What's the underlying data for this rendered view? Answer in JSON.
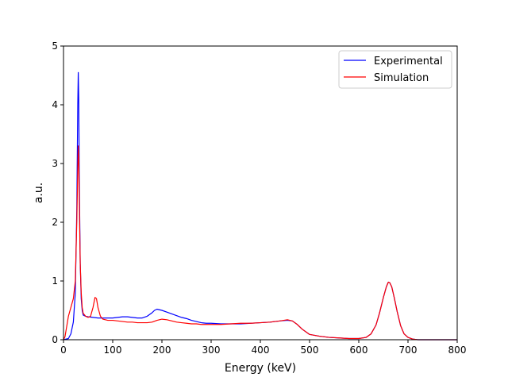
{
  "chart_data": {
    "type": "line",
    "title": "",
    "xlabel": "Energy (keV)",
    "ylabel": "a.u.",
    "xlim": [
      0,
      800
    ],
    "ylim": [
      0,
      5
    ],
    "xticks": [
      "0",
      "100",
      "200",
      "300",
      "400",
      "500",
      "600",
      "700",
      "800"
    ],
    "yticks": [
      "0",
      "1",
      "2",
      "3",
      "4",
      "5"
    ],
    "grid": false,
    "legend_position": "top-right",
    "series": [
      {
        "name": "Experimental",
        "color": "#0000ff",
        "x": [
          0,
          10,
          15,
          20,
          24,
          27,
          29,
          30,
          31,
          32,
          34,
          36,
          38,
          40,
          45,
          50,
          60,
          70,
          80,
          90,
          100,
          110,
          120,
          130,
          140,
          150,
          160,
          170,
          180,
          185,
          190,
          195,
          200,
          210,
          220,
          230,
          240,
          250,
          260,
          270,
          280,
          290,
          300,
          320,
          340,
          360,
          380,
          400,
          420,
          440,
          455,
          465,
          475,
          485,
          500,
          520,
          540,
          560,
          580,
          600,
          615,
          625,
          635,
          642,
          650,
          656,
          660,
          663,
          667,
          672,
          678,
          685,
          692,
          700,
          710,
          720,
          740,
          760,
          800
        ],
        "y": [
          0.0,
          0.02,
          0.1,
          0.3,
          0.8,
          2.2,
          4.0,
          4.55,
          4.1,
          2.8,
          1.3,
          0.7,
          0.5,
          0.42,
          0.4,
          0.39,
          0.38,
          0.37,
          0.37,
          0.37,
          0.37,
          0.38,
          0.39,
          0.39,
          0.38,
          0.37,
          0.37,
          0.4,
          0.46,
          0.5,
          0.52,
          0.51,
          0.5,
          0.47,
          0.44,
          0.41,
          0.38,
          0.36,
          0.33,
          0.31,
          0.29,
          0.28,
          0.28,
          0.27,
          0.27,
          0.27,
          0.28,
          0.29,
          0.3,
          0.32,
          0.33,
          0.32,
          0.26,
          0.18,
          0.09,
          0.06,
          0.04,
          0.03,
          0.02,
          0.02,
          0.04,
          0.1,
          0.25,
          0.45,
          0.72,
          0.9,
          0.98,
          0.97,
          0.9,
          0.72,
          0.48,
          0.24,
          0.1,
          0.04,
          0.01,
          0.0,
          0.0,
          0.0,
          0.0
        ]
      },
      {
        "name": "Simulation",
        "color": "#ff0000",
        "x": [
          0,
          3,
          6,
          10,
          15,
          20,
          24,
          27,
          29,
          30,
          31,
          32,
          34,
          36,
          38,
          40,
          45,
          50,
          55,
          60,
          64,
          67,
          70,
          75,
          80,
          90,
          100,
          110,
          120,
          130,
          140,
          150,
          160,
          170,
          180,
          190,
          200,
          210,
          220,
          230,
          240,
          250,
          260,
          270,
          280,
          300,
          320,
          340,
          360,
          380,
          400,
          420,
          440,
          455,
          465,
          475,
          485,
          500,
          520,
          540,
          560,
          580,
          600,
          615,
          625,
          635,
          642,
          650,
          656,
          660,
          663,
          667,
          672,
          678,
          685,
          692,
          700,
          710,
          720,
          740,
          760,
          800
        ],
        "y": [
          0.0,
          0.05,
          0.2,
          0.4,
          0.55,
          0.7,
          1.0,
          2.0,
          2.9,
          3.3,
          3.1,
          2.4,
          1.3,
          0.8,
          0.55,
          0.45,
          0.4,
          0.38,
          0.4,
          0.55,
          0.72,
          0.7,
          0.55,
          0.4,
          0.35,
          0.33,
          0.33,
          0.32,
          0.31,
          0.3,
          0.3,
          0.29,
          0.29,
          0.29,
          0.3,
          0.33,
          0.35,
          0.34,
          0.32,
          0.3,
          0.29,
          0.28,
          0.27,
          0.27,
          0.26,
          0.26,
          0.26,
          0.27,
          0.28,
          0.28,
          0.29,
          0.3,
          0.32,
          0.34,
          0.32,
          0.26,
          0.18,
          0.09,
          0.06,
          0.04,
          0.03,
          0.02,
          0.02,
          0.04,
          0.1,
          0.25,
          0.45,
          0.72,
          0.9,
          0.98,
          0.97,
          0.9,
          0.72,
          0.48,
          0.24,
          0.1,
          0.04,
          0.01,
          0.0,
          0.0,
          0.0,
          0.0
        ]
      }
    ]
  }
}
